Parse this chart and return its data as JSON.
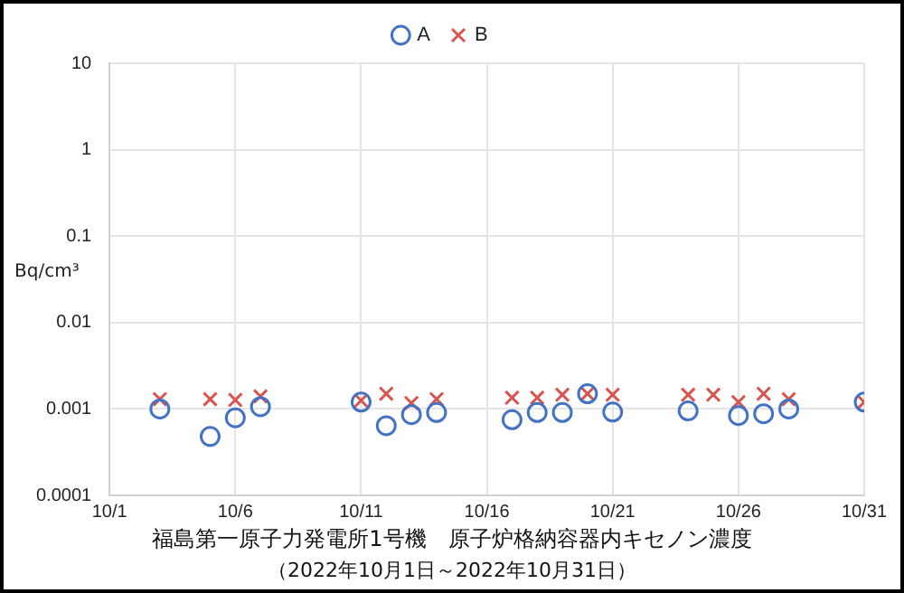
{
  "chart_data": {
    "type": "scatter",
    "title": "福島第一原子力発電所1号機　原子炉格納容器内キセノン濃度",
    "subtitle": "（2022年10月1日～2022年10月31日）",
    "ylabel": "Bq/cm³",
    "log": "y",
    "grid": true,
    "legend": "top",
    "xlim": [
      "2022-10-01",
      "2022-10-31"
    ],
    "xticks": [
      {
        "value": "2022-10-01",
        "label": "10/1"
      },
      {
        "value": "2022-10-06",
        "label": "10/6"
      },
      {
        "value": "2022-10-11",
        "label": "10/11"
      },
      {
        "value": "2022-10-16",
        "label": "10/16"
      },
      {
        "value": "2022-10-21",
        "label": "10/21"
      },
      {
        "value": "2022-10-26",
        "label": "10/26"
      },
      {
        "value": "2022-10-31",
        "label": "10/31"
      }
    ],
    "ylim": [
      0.0001,
      10
    ],
    "yticks": [
      0.0001,
      0.001,
      0.01,
      0.1,
      1,
      10
    ],
    "series": [
      {
        "name": "A",
        "color": "#4472c4",
        "marker": "circle",
        "x": [
          "2022-10-03",
          "2022-10-05",
          "2022-10-06",
          "2022-10-07",
          "2022-10-11",
          "2022-10-12",
          "2022-10-13",
          "2022-10-14",
          "2022-10-17",
          "2022-10-18",
          "2022-10-19",
          "2022-10-20",
          "2022-10-21",
          "2022-10-24",
          "2022-10-26",
          "2022-10-27",
          "2022-10-28",
          "2022-10-31"
        ],
        "values": [
          0.001,
          0.00048,
          0.00079,
          0.00106,
          0.0012,
          0.00064,
          0.00086,
          0.00091,
          0.00075,
          0.00091,
          0.00091,
          0.0015,
          0.00092,
          0.00095,
          0.00084,
          0.00088,
          0.001,
          0.0012
        ]
      },
      {
        "name": "B",
        "color": "#d9534f",
        "marker": "cross",
        "x": [
          "2022-10-03",
          "2022-10-05",
          "2022-10-06",
          "2022-10-07",
          "2022-10-11",
          "2022-10-12",
          "2022-10-13",
          "2022-10-14",
          "2022-10-17",
          "2022-10-18",
          "2022-10-19",
          "2022-10-20",
          "2022-10-21",
          "2022-10-24",
          "2022-10-25",
          "2022-10-26",
          "2022-10-27",
          "2022-10-28",
          "2022-10-31"
        ],
        "values": [
          0.0013,
          0.0013,
          0.00127,
          0.0014,
          0.00125,
          0.0015,
          0.00117,
          0.0013,
          0.00135,
          0.00135,
          0.00146,
          0.0015,
          0.00146,
          0.00146,
          0.00146,
          0.0012,
          0.0015,
          0.0013,
          0.0012
        ]
      }
    ]
  }
}
